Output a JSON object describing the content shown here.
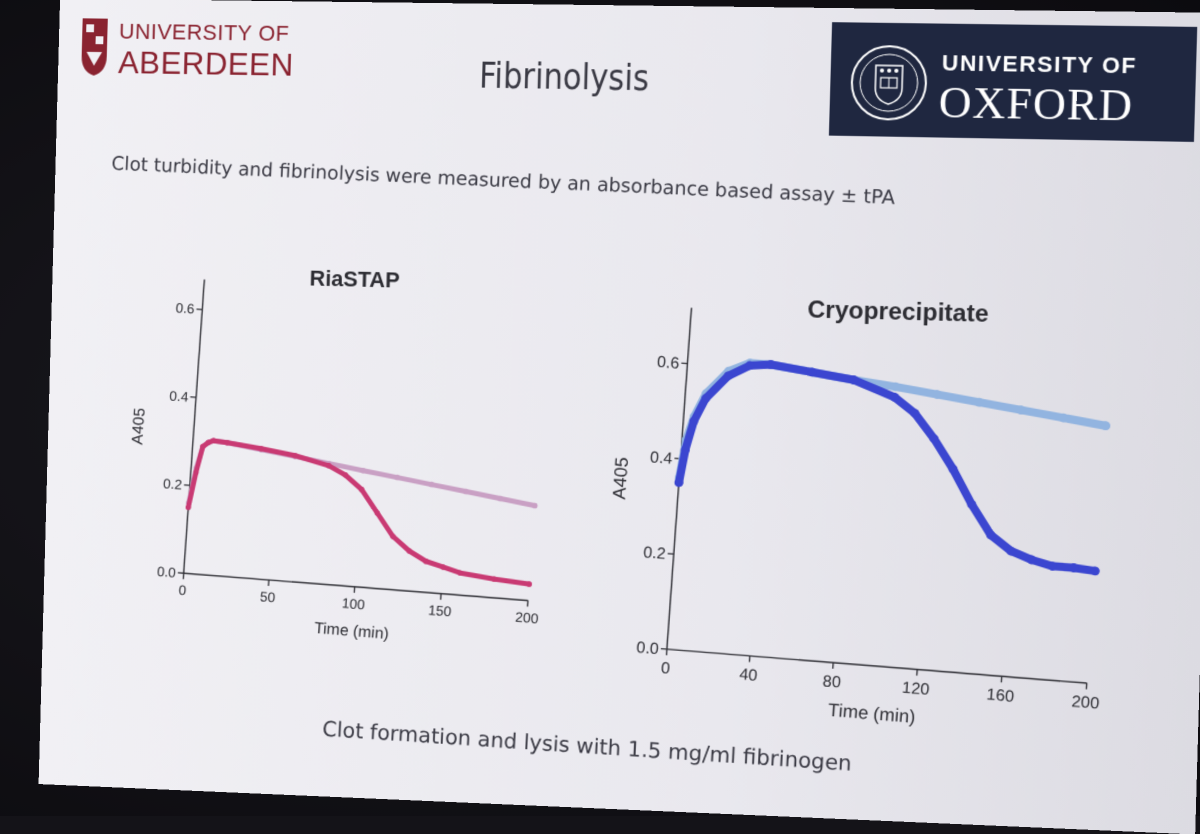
{
  "slide": {
    "title": "Fibrinolysis",
    "subtitle": "Clot turbidity and fibrinolysis were measured by an absorbance based assay ± tPA",
    "footer": "Clot formation and lysis with 1.5 mg/ml fibrinogen"
  },
  "logos": {
    "aberdeen": {
      "line1": "UNIVERSITY OF",
      "line2": "ABERDEEN",
      "color": "#8a2330"
    },
    "oxford": {
      "line1": "UNIVERSITY OF",
      "line2": "OXFORD",
      "background": "#1f2740"
    }
  },
  "chart_data": [
    {
      "type": "line",
      "title": "RiaSTAP",
      "xlabel": "Time (min)",
      "ylabel": "A405",
      "xlim": [
        0,
        200
      ],
      "ylim": [
        0,
        0.65
      ],
      "xticks": [
        0,
        50,
        100,
        150,
        200
      ],
      "yticks": [
        0.0,
        0.2,
        0.4,
        0.6
      ],
      "xtick_labels": [
        "0",
        "50",
        "100",
        "150",
        "200"
      ],
      "ytick_labels": [
        "0.0",
        "0.2",
        "0.4",
        "0.6"
      ],
      "grid": false,
      "series": [
        {
          "color": "#c9a0c4",
          "x": [
            0,
            3,
            6,
            9,
            12,
            20,
            40,
            60,
            80,
            100,
            120,
            140,
            160,
            180,
            200
          ],
          "y": [
            0.16,
            0.24,
            0.29,
            0.3,
            0.305,
            0.303,
            0.293,
            0.283,
            0.273,
            0.263,
            0.253,
            0.243,
            0.233,
            0.223,
            0.213
          ]
        },
        {
          "color": "#c93a73",
          "x": [
            0,
            3,
            6,
            9,
            12,
            20,
            40,
            60,
            80,
            90,
            100,
            110,
            120,
            130,
            140,
            150,
            160,
            180,
            200
          ],
          "y": [
            0.15,
            0.23,
            0.29,
            0.3,
            0.305,
            0.303,
            0.295,
            0.285,
            0.268,
            0.25,
            0.22,
            0.17,
            0.12,
            0.09,
            0.07,
            0.06,
            0.05,
            0.042,
            0.037
          ]
        }
      ]
    },
    {
      "type": "line",
      "title": "Cryoprecipitate",
      "xlabel": "Time (min)",
      "ylabel": "A405",
      "xlim": [
        0,
        200
      ],
      "ylim": [
        0,
        0.7
      ],
      "xticks": [
        0,
        40,
        80,
        120,
        160,
        200
      ],
      "yticks": [
        0.0,
        0.2,
        0.4,
        0.6
      ],
      "xtick_labels": [
        "0",
        "40",
        "80",
        "120",
        "160",
        "200"
      ],
      "ytick_labels": [
        "0.0",
        "0.2",
        "0.4",
        "0.6"
      ],
      "grid": false,
      "series": [
        {
          "color": "#92b4e0",
          "x": [
            0,
            2,
            5,
            10,
            20,
            30,
            40,
            60,
            80,
            100,
            120,
            140,
            160,
            180,
            200
          ],
          "y": [
            0.36,
            0.44,
            0.49,
            0.54,
            0.59,
            0.61,
            0.61,
            0.6,
            0.59,
            0.582,
            0.572,
            0.562,
            0.552,
            0.542,
            0.532
          ]
        },
        {
          "color": "#3b46d0",
          "x": [
            0,
            2,
            5,
            10,
            20,
            30,
            40,
            60,
            80,
            100,
            110,
            120,
            130,
            140,
            150,
            160,
            170,
            180,
            190,
            200
          ],
          "y": [
            0.35,
            0.42,
            0.48,
            0.53,
            0.58,
            0.605,
            0.61,
            0.6,
            0.59,
            0.56,
            0.53,
            0.48,
            0.42,
            0.35,
            0.29,
            0.26,
            0.245,
            0.235,
            0.235,
            0.232
          ]
        }
      ]
    }
  ]
}
